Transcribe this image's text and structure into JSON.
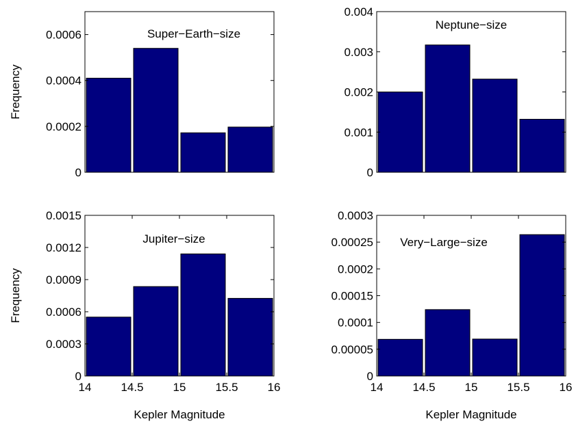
{
  "colors": {
    "bar_fill": "#00007f",
    "bar_stroke": "#000000",
    "axis": "#000000",
    "background": "#ffffff"
  },
  "chart_data": [
    {
      "type": "bar",
      "annotation": "Super−Earth−size",
      "ylabel": "Frequency",
      "xlabel": "",
      "bin_edges": [
        14,
        14.5,
        15,
        15.5,
        16
      ],
      "categories": [
        "14–14.5",
        "14.5–15",
        "15–15.5",
        "15.5–16"
      ],
      "values": [
        0.00041,
        0.00054,
        0.000172,
        0.000197
      ],
      "xlim": [
        14,
        16
      ],
      "ylim": [
        0,
        0.0007
      ],
      "yticks": [
        0,
        0.0002,
        0.0004,
        0.0006
      ],
      "ytick_labels": [
        "0",
        "0.0002",
        "0.0004",
        "0.0006"
      ],
      "xticks": [],
      "xtick_labels": []
    },
    {
      "type": "bar",
      "annotation": "Neptune−size",
      "ylabel": "",
      "xlabel": "",
      "bin_edges": [
        14,
        14.5,
        15,
        15.5,
        16
      ],
      "categories": [
        "14–14.5",
        "14.5–15",
        "15–15.5",
        "15.5–16"
      ],
      "values": [
        0.002,
        0.00317,
        0.00232,
        0.00132
      ],
      "xlim": [
        14,
        16
      ],
      "ylim": [
        0,
        0.004
      ],
      "yticks": [
        0,
        0.001,
        0.002,
        0.003,
        0.004
      ],
      "ytick_labels": [
        "0",
        "0.001",
        "0.002",
        "0.003",
        "0.004"
      ],
      "xticks": [],
      "xtick_labels": []
    },
    {
      "type": "bar",
      "annotation": "Jupiter−size",
      "ylabel": "Frequency",
      "xlabel": "Kepler Magnitude",
      "bin_edges": [
        14,
        14.5,
        15,
        15.5,
        16
      ],
      "categories": [
        "14–14.5",
        "14.5–15",
        "15–15.5",
        "15.5–16"
      ],
      "values": [
        0.00055,
        0.000835,
        0.00114,
        0.000725
      ],
      "xlim": [
        14,
        16
      ],
      "ylim": [
        0,
        0.0015
      ],
      "yticks": [
        0,
        0.0003,
        0.0006,
        0.0009,
        0.0012,
        0.0015
      ],
      "ytick_labels": [
        "0",
        "0.0003",
        "0.0006",
        "0.0009",
        "0.0012",
        "0.0015"
      ],
      "xticks": [
        14,
        14.5,
        15,
        15.5,
        16
      ],
      "xtick_labels": [
        "14",
        "14.5",
        "15",
        "15.5",
        "16"
      ]
    },
    {
      "type": "bar",
      "annotation": "Very−Large−size",
      "ylabel": "",
      "xlabel": "Kepler Magnitude",
      "bin_edges": [
        14,
        14.5,
        15,
        15.5,
        16
      ],
      "categories": [
        "14–14.5",
        "14.5–15",
        "15–15.5",
        "15.5–16"
      ],
      "values": [
        6.85e-05,
        0.000124,
        6.9e-05,
        0.000264
      ],
      "xlim": [
        14,
        16
      ],
      "ylim": [
        0,
        0.0003
      ],
      "yticks": [
        0,
        5e-05,
        0.0001,
        0.00015,
        0.0002,
        0.00025,
        0.0003
      ],
      "ytick_labels": [
        "0",
        "0.00005",
        "0.0001",
        "0.00015",
        "0.0002",
        "0.00025",
        "0.0003"
      ],
      "xticks": [
        14,
        14.5,
        15,
        15.5,
        16
      ],
      "xtick_labels": [
        "14",
        "14.5",
        "15",
        "15.5",
        "16"
      ]
    }
  ]
}
